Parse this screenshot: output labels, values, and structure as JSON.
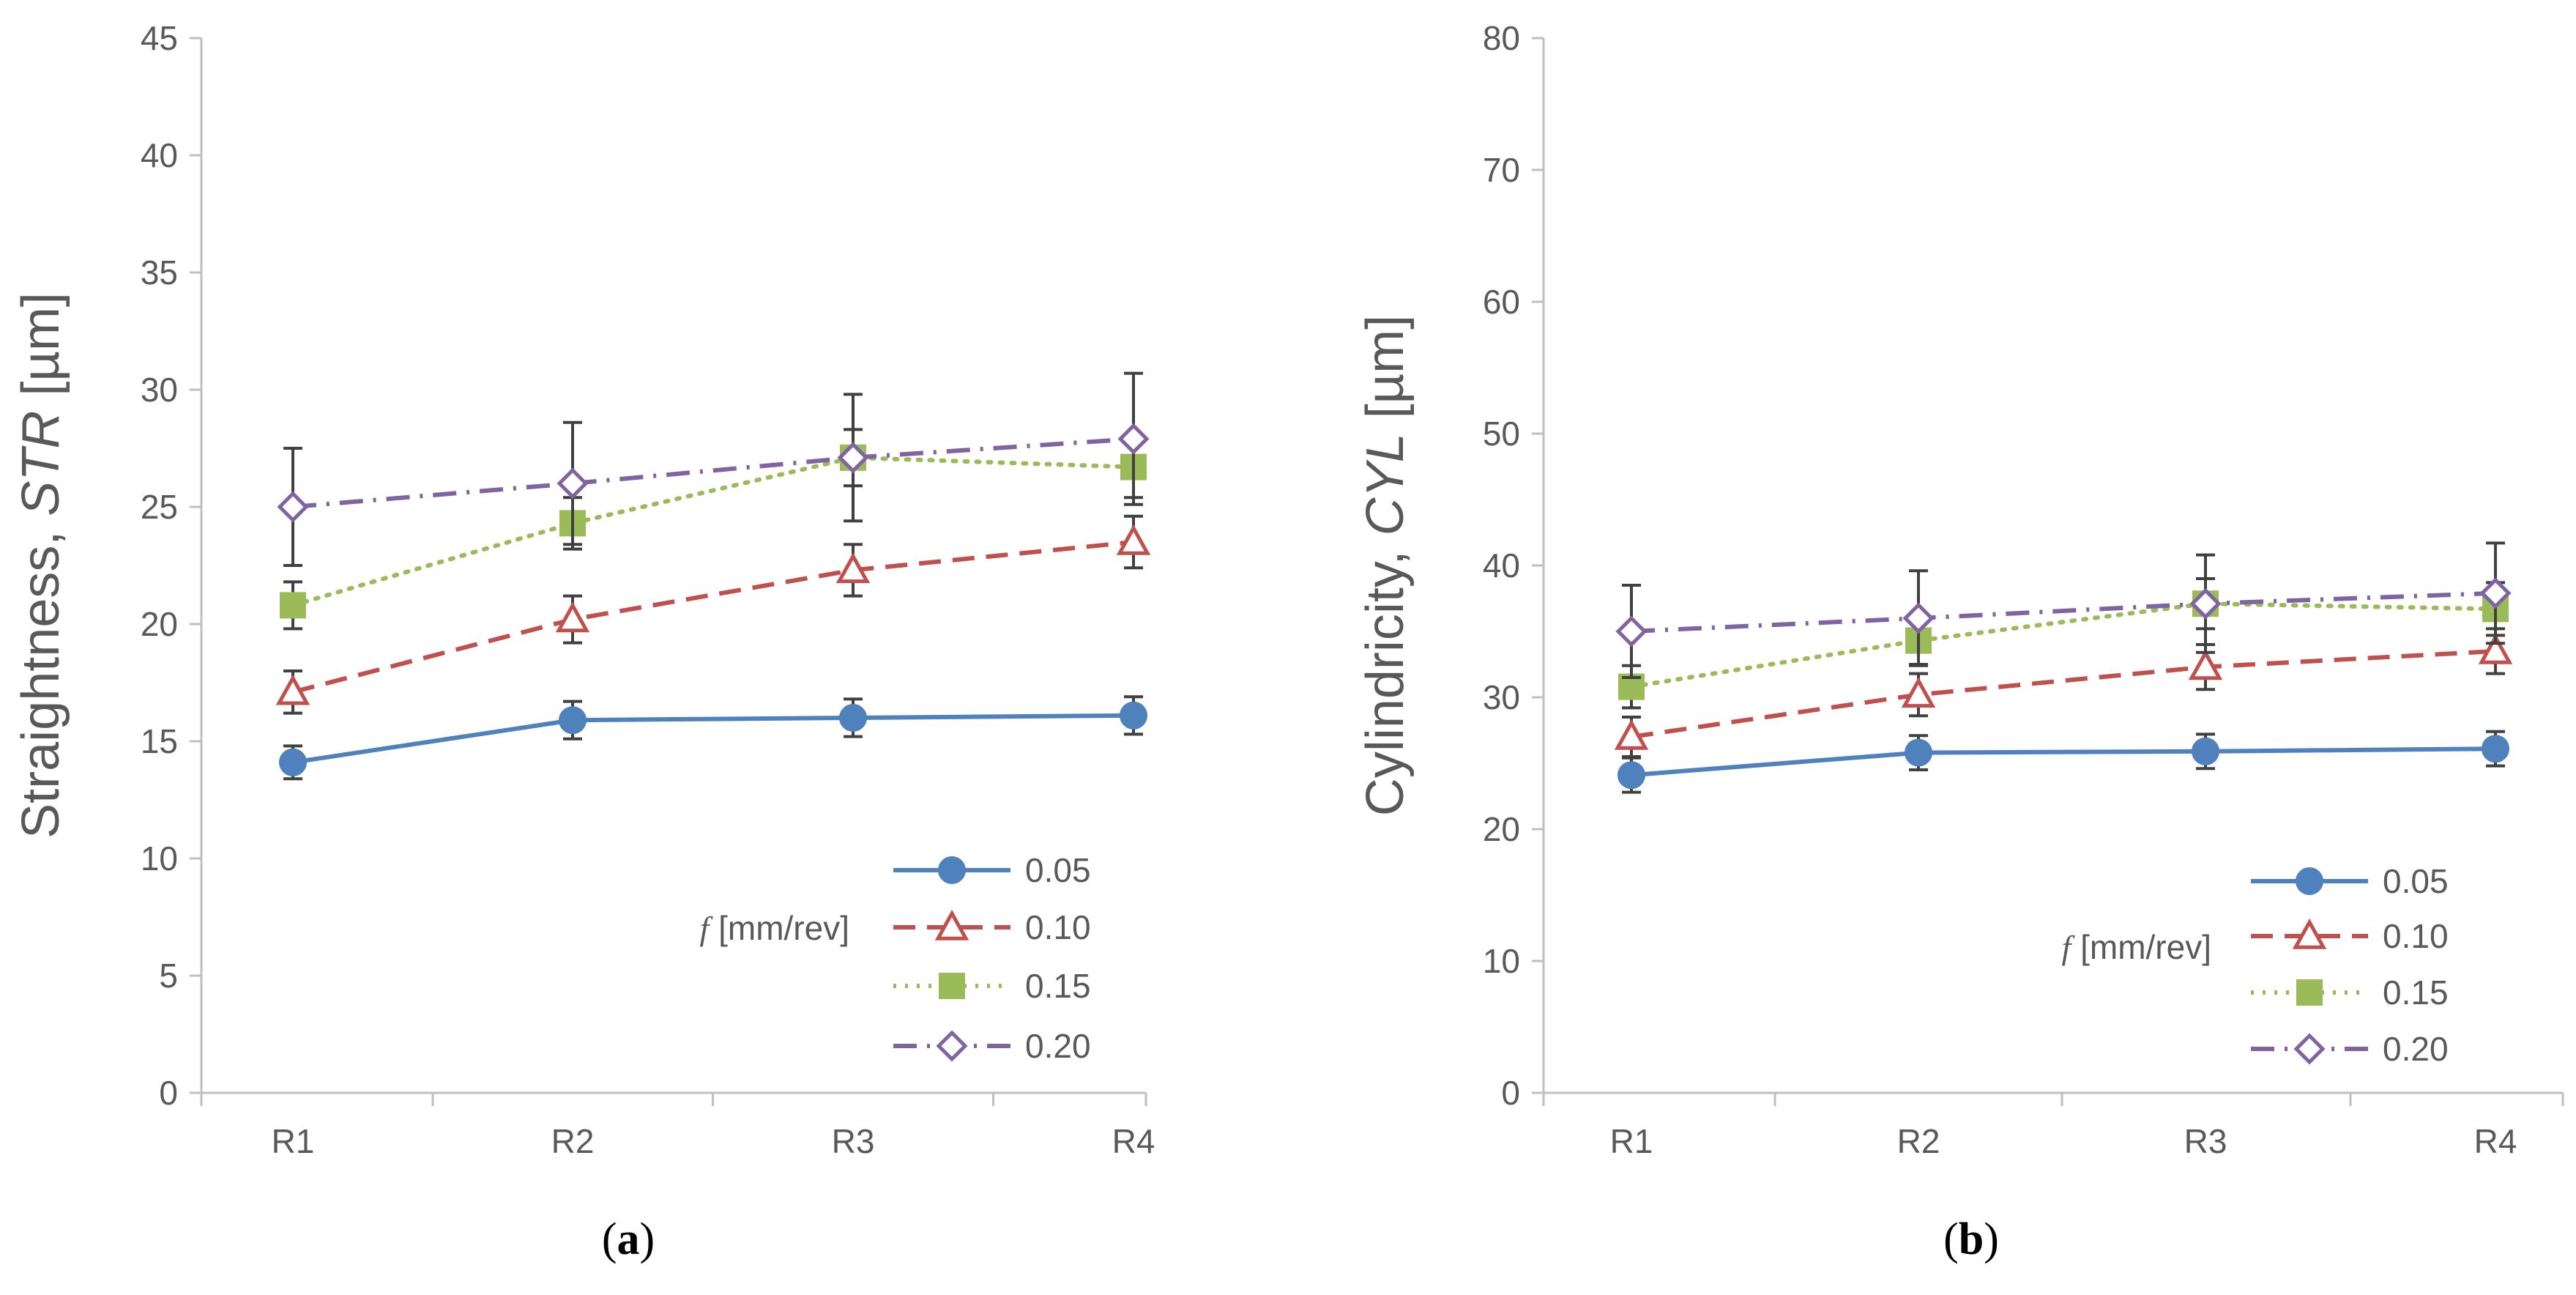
{
  "colors": {
    "axis": "#bfbfbf",
    "text": "#595959",
    "errorbar": "#404040",
    "series": [
      "#4f81bd",
      "#c0504d",
      "#9bbb59",
      "#8064a2"
    ]
  },
  "legend": {
    "title_italic": "f",
    "title_unit": " [mm/rev]"
  },
  "chart_data": [
    {
      "type": "line",
      "panel_label": "a",
      "ylabel_prefix": "Straightness, ",
      "ylabel_italic": "STR",
      "ylabel_suffix": " [µm]",
      "categories": [
        "R1",
        "R2",
        "R3",
        "R4"
      ],
      "ylim": [
        0,
        45
      ],
      "yticks": [
        0,
        5,
        10,
        15,
        20,
        25,
        30,
        35,
        40,
        45
      ],
      "grid": false,
      "legend_position": "bottom-right",
      "series": [
        {
          "name": "0.05",
          "marker": "circle-filled",
          "dash": "solid",
          "values": [
            14.1,
            15.9,
            16.0,
            16.1
          ],
          "errors": [
            0.7,
            0.8,
            0.8,
            0.8
          ]
        },
        {
          "name": "0.10",
          "marker": "triangle-open",
          "dash": "dashed",
          "values": [
            17.1,
            20.2,
            22.3,
            23.5
          ],
          "errors": [
            0.9,
            1.0,
            1.1,
            1.1
          ]
        },
        {
          "name": "0.15",
          "marker": "square-filled",
          "dash": "dotted",
          "values": [
            20.8,
            24.3,
            27.1,
            26.7
          ],
          "errors": [
            1.0,
            1.1,
            1.2,
            1.3
          ]
        },
        {
          "name": "0.20",
          "marker": "diamond-open",
          "dash": "dash-dot",
          "values": [
            25.0,
            26.0,
            27.1,
            27.9
          ],
          "errors": [
            2.5,
            2.6,
            2.7,
            2.8
          ]
        }
      ]
    },
    {
      "type": "line",
      "panel_label": "b",
      "ylabel_prefix": "Cylindricity, ",
      "ylabel_italic": "CYL",
      "ylabel_suffix": " [µm]",
      "categories": [
        "R1",
        "R2",
        "R3",
        "R4"
      ],
      "ylim": [
        0,
        80
      ],
      "yticks": [
        0,
        10,
        20,
        30,
        40,
        50,
        60,
        70,
        80
      ],
      "grid": false,
      "legend_position": "bottom-right",
      "series": [
        {
          "name": "0.05",
          "marker": "circle-filled",
          "dash": "solid",
          "values": [
            24.1,
            25.8,
            25.9,
            26.1
          ],
          "errors": [
            1.3,
            1.3,
            1.3,
            1.3
          ]
        },
        {
          "name": "0.10",
          "marker": "triangle-open",
          "dash": "dashed",
          "values": [
            27.0,
            30.2,
            32.3,
            33.5
          ],
          "errors": [
            1.5,
            1.6,
            1.7,
            1.7
          ]
        },
        {
          "name": "0.15",
          "marker": "square-filled",
          "dash": "dotted",
          "values": [
            30.8,
            34.3,
            37.1,
            36.7
          ],
          "errors": [
            1.6,
            1.8,
            1.9,
            2.0
          ]
        },
        {
          "name": "0.20",
          "marker": "diamond-open",
          "dash": "dash-dot",
          "values": [
            35.0,
            36.0,
            37.1,
            37.9
          ],
          "errors": [
            3.5,
            3.6,
            3.7,
            3.8
          ]
        }
      ]
    }
  ]
}
